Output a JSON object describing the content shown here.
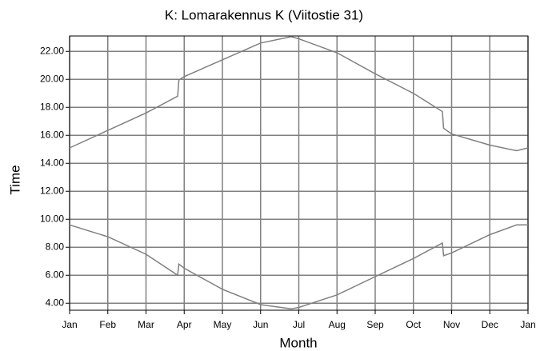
{
  "chart_data": {
    "type": "line",
    "title": "K: Lomarakennus K (Viitostie 31)",
    "x_label": "Month",
    "y_label": "Time",
    "xlim": [
      0,
      12
    ],
    "xticks": [
      {
        "value": 0,
        "label": "Jan"
      },
      {
        "value": 1,
        "label": "Feb"
      },
      {
        "value": 2,
        "label": "Mar"
      },
      {
        "value": 3,
        "label": "Apr"
      },
      {
        "value": 4,
        "label": "May"
      },
      {
        "value": 5,
        "label": "Jun"
      },
      {
        "value": 6,
        "label": "Jul"
      },
      {
        "value": 7,
        "label": "Aug"
      },
      {
        "value": 8,
        "label": "Sep"
      },
      {
        "value": 9,
        "label": "Oct"
      },
      {
        "value": 10,
        "label": "Nov"
      },
      {
        "value": 11,
        "label": "Dec"
      },
      {
        "value": 12,
        "label": "Jan"
      }
    ],
    "ylim": [
      3.5,
      23.1
    ],
    "yticks": [
      {
        "value": 4,
        "label": "4.00"
      },
      {
        "value": 6,
        "label": "6.00"
      },
      {
        "value": 8,
        "label": "8.00"
      },
      {
        "value": 10,
        "label": "10.00"
      },
      {
        "value": 12,
        "label": "12.00"
      },
      {
        "value": 14,
        "label": "14.00"
      },
      {
        "value": 16,
        "label": "16.00"
      },
      {
        "value": 18,
        "label": "18.00"
      },
      {
        "value": 20,
        "label": "20.00"
      },
      {
        "value": 22,
        "label": "22.00"
      }
    ],
    "grid": true,
    "series": [
      {
        "color": "#808080",
        "x": [
          0,
          1,
          2,
          2.83,
          2.86,
          3,
          4,
          5,
          5.8,
          6,
          7,
          8,
          9,
          9.76,
          9.79,
          10,
          11,
          11.7,
          12
        ],
        "values": [
          15.1,
          16.35,
          17.6,
          18.8,
          19.95,
          20.2,
          21.4,
          22.6,
          23.05,
          22.9,
          21.9,
          20.4,
          19.0,
          17.7,
          16.5,
          16.1,
          15.3,
          14.9,
          15.1
        ]
      },
      {
        "color": "#808080",
        "x": [
          0,
          1,
          2,
          2.83,
          2.86,
          3,
          4,
          5,
          5.8,
          6,
          7,
          8,
          9,
          9.76,
          9.79,
          10,
          11,
          11.7,
          12
        ],
        "values": [
          9.6,
          8.75,
          7.5,
          6.0,
          6.8,
          6.5,
          5.0,
          3.9,
          3.6,
          3.7,
          4.6,
          5.9,
          7.2,
          8.3,
          7.4,
          7.6,
          8.9,
          9.6,
          9.6
        ]
      }
    ]
  }
}
